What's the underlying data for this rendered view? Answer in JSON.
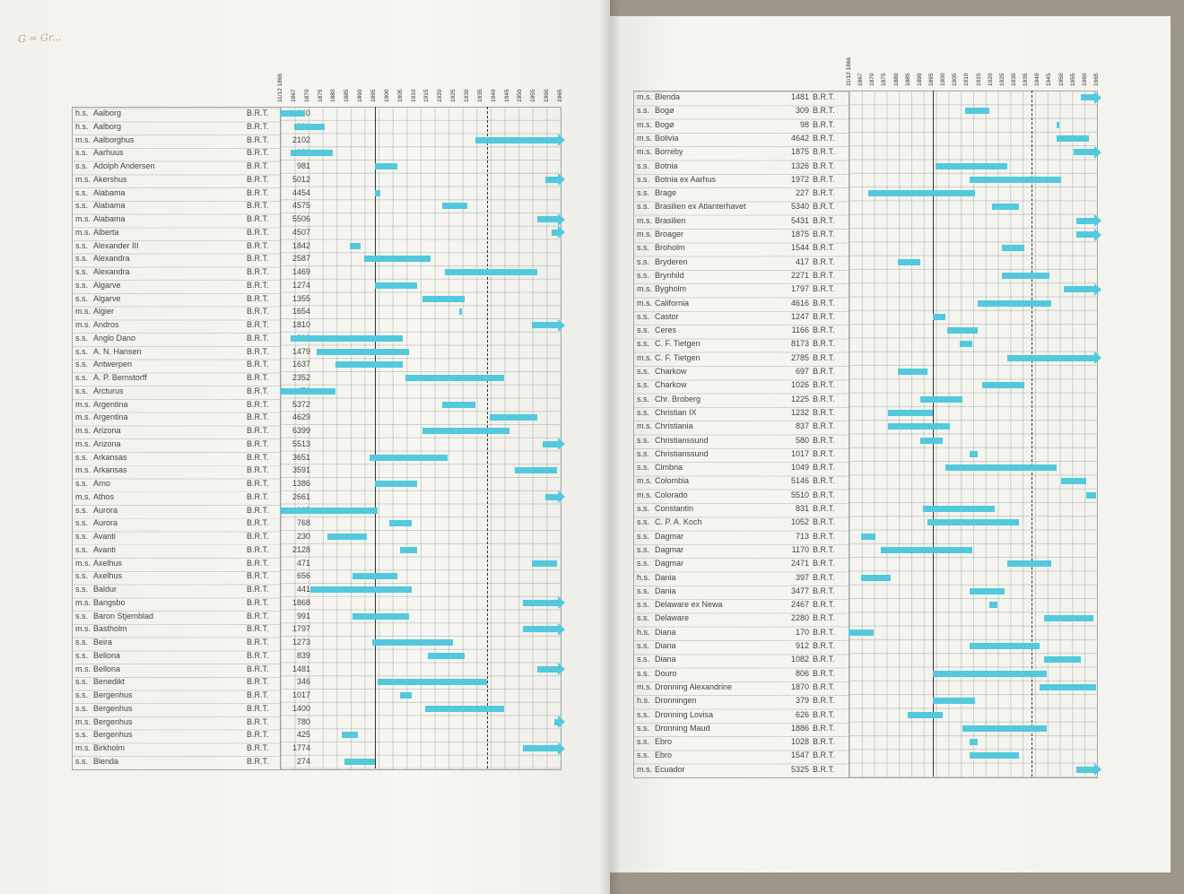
{
  "header_note": "G = Gr...",
  "years": [
    "11/12 1866",
    "1867",
    "1870",
    "1875",
    "1880",
    "1885",
    "1890",
    "1895",
    "1900",
    "1905",
    "1910",
    "1915",
    "1920",
    "1925",
    "1930",
    "1935",
    "1940",
    "1945",
    "1950",
    "1955",
    "1960",
    "1965"
  ],
  "left_rows": [
    {
      "type": "h.s.",
      "name": "Aalborg",
      "tonnage": "140",
      "unit": "B.R.T.",
      "bars": [
        [
          1866,
          1875
        ]
      ]
    },
    {
      "type": "h.s.",
      "name": "Aalborg",
      "tonnage": "161",
      "unit": "B.R.T.",
      "bars": [
        [
          1871,
          1882
        ]
      ]
    },
    {
      "type": "m.s.",
      "name": "Aalborghus",
      "tonnage": "2102",
      "unit": "B.R.T.",
      "bars": [
        [
          1936,
          1966,
          "arrow"
        ]
      ]
    },
    {
      "type": "s.s.",
      "name": "Aarhuus",
      "tonnage": "380",
      "unit": "B.R.T.",
      "bars": [
        [
          1870,
          1885
        ]
      ]
    },
    {
      "type": "s.s.",
      "name": "Adolph Andersen",
      "tonnage": "981",
      "unit": "B.R.T.",
      "bars": [
        [
          1900,
          1908
        ]
      ]
    },
    {
      "type": "m.s.",
      "name": "Akershus",
      "tonnage": "5012",
      "unit": "B.R.T.",
      "bars": [
        [
          1961,
          1966,
          "arrow"
        ]
      ]
    },
    {
      "type": "s.s.",
      "name": "Alabama",
      "tonnage": "4454",
      "unit": "B.R.T.",
      "bars": [
        [
          1900,
          1902
        ]
      ]
    },
    {
      "type": "s.s.",
      "name": "Alabama",
      "tonnage": "4575",
      "unit": "B.R.T.",
      "bars": [
        [
          1924,
          1933
        ]
      ]
    },
    {
      "type": "m.s.",
      "name": "Alabama",
      "tonnage": "5506",
      "unit": "B.R.T.",
      "bars": [
        [
          1958,
          1966,
          "arrow"
        ]
      ]
    },
    {
      "type": "m.s.",
      "name": "Alberta",
      "tonnage": "4507",
      "unit": "B.R.T.",
      "bars": [
        [
          1963,
          1966,
          "arrow"
        ]
      ]
    },
    {
      "type": "s.s.",
      "name": "Alexander III",
      "tonnage": "1842",
      "unit": "B.R.T.",
      "bars": [
        [
          1891,
          1895
        ]
      ]
    },
    {
      "type": "s.s.",
      "name": "Alexandra",
      "tonnage": "2587",
      "unit": "B.R.T.",
      "bars": [
        [
          1896,
          1920
        ]
      ]
    },
    {
      "type": "s.s.",
      "name": "Alexandra",
      "tonnage": "1469",
      "unit": "B.R.T.",
      "bars": [
        [
          1925,
          1958
        ]
      ]
    },
    {
      "type": "s.s.",
      "name": "Algarve",
      "tonnage": "1274",
      "unit": "B.R.T.",
      "bars": [
        [
          1900,
          1915
        ]
      ]
    },
    {
      "type": "s.s.",
      "name": "Algarve",
      "tonnage": "1355",
      "unit": "B.R.T.",
      "bars": [
        [
          1917,
          1932
        ]
      ]
    },
    {
      "type": "m.s.",
      "name": "Algier",
      "tonnage": "1654",
      "unit": "B.R.T.",
      "bars": [
        [
          1930,
          1931
        ]
      ]
    },
    {
      "type": "m.s.",
      "name": "Andros",
      "tonnage": "1810",
      "unit": "B.R.T.",
      "bars": [
        [
          1956,
          1966,
          "arrow"
        ]
      ]
    },
    {
      "type": "s.s.",
      "name": "Anglo Dano",
      "tonnage": "808",
      "unit": "B.R.T.",
      "bars": [
        [
          1870,
          1910
        ]
      ]
    },
    {
      "type": "s.s.",
      "name": "A. N. Hansen",
      "tonnage": "1479",
      "unit": "B.R.T.",
      "bars": [
        [
          1879,
          1912
        ]
      ]
    },
    {
      "type": "s.s.",
      "name": "Antwerpen",
      "tonnage": "1637",
      "unit": "B.R.T.",
      "bars": [
        [
          1886,
          1910
        ]
      ]
    },
    {
      "type": "s.s.",
      "name": "A. P. Bernstorff",
      "tonnage": "2352",
      "unit": "B.R.T.",
      "bars": [
        [
          1911,
          1946
        ]
      ]
    },
    {
      "type": "s.s.",
      "name": "Arcturus",
      "tonnage": "472",
      "unit": "B.R.T.",
      "bars": [
        [
          1866,
          1886
        ]
      ]
    },
    {
      "type": "m.s.",
      "name": "Argentina",
      "tonnage": "5372",
      "unit": "B.R.T.",
      "bars": [
        [
          1924,
          1936
        ]
      ]
    },
    {
      "type": "m.s.",
      "name": "Argentina",
      "tonnage": "4629",
      "unit": "B.R.T.",
      "bars": [
        [
          1941,
          1958
        ]
      ]
    },
    {
      "type": "m.s.",
      "name": "Arizona",
      "tonnage": "6399",
      "unit": "B.R.T.",
      "bars": [
        [
          1917,
          1948
        ]
      ]
    },
    {
      "type": "m.s.",
      "name": "Arizona",
      "tonnage": "5513",
      "unit": "B.R.T.",
      "bars": [
        [
          1960,
          1966,
          "arrow"
        ]
      ]
    },
    {
      "type": "s.s.",
      "name": "Arkansas",
      "tonnage": "3651",
      "unit": "B.R.T.",
      "bars": [
        [
          1898,
          1926
        ]
      ]
    },
    {
      "type": "m.s.",
      "name": "Arkansas",
      "tonnage": "3591",
      "unit": "B.R.T.",
      "bars": [
        [
          1950,
          1965
        ]
      ]
    },
    {
      "type": "s.s.",
      "name": "Arno",
      "tonnage": "1386",
      "unit": "B.R.T.",
      "bars": [
        [
          1900,
          1915
        ]
      ]
    },
    {
      "type": "m.s.",
      "name": "Athos",
      "tonnage": "2661",
      "unit": "B.R.T.",
      "bars": [
        [
          1961,
          1966,
          "arrow"
        ]
      ]
    },
    {
      "type": "s.s.",
      "name": "Aurora",
      "tonnage": "198",
      "unit": "B.R.T.",
      "bars": [
        [
          1866,
          1901
        ]
      ]
    },
    {
      "type": "s.s.",
      "name": "Aurora",
      "tonnage": "768",
      "unit": "B.R.T.",
      "bars": [
        [
          1905,
          1913
        ]
      ]
    },
    {
      "type": "s.s.",
      "name": "Avanti",
      "tonnage": "230",
      "unit": "B.R.T.",
      "bars": [
        [
          1883,
          1897
        ]
      ]
    },
    {
      "type": "s.s.",
      "name": "Avanti",
      "tonnage": "2128",
      "unit": "B.R.T.",
      "bars": [
        [
          1909,
          1915
        ]
      ]
    },
    {
      "type": "m.s.",
      "name": "Axelhus",
      "tonnage": "471",
      "unit": "B.R.T.",
      "bars": [
        [
          1956,
          1965
        ]
      ]
    },
    {
      "type": "s.s.",
      "name": "Axelhus",
      "tonnage": "656",
      "unit": "B.R.T.",
      "bars": [
        [
          1892,
          1908
        ]
      ]
    },
    {
      "type": "s.s.",
      "name": "Baldur",
      "tonnage": "441",
      "unit": "B.R.T.",
      "bars": [
        [
          1877,
          1913
        ]
      ]
    },
    {
      "type": "m.s.",
      "name": "Bangsbo",
      "tonnage": "1868",
      "unit": "B.R.T.",
      "bars": [
        [
          1953,
          1966,
          "arrow"
        ]
      ]
    },
    {
      "type": "s.s.",
      "name": "Baron Stjernblad",
      "tonnage": "991",
      "unit": "B.R.T.",
      "bars": [
        [
          1892,
          1912
        ]
      ]
    },
    {
      "type": "m.s.",
      "name": "Bastholm",
      "tonnage": "1797",
      "unit": "B.R.T.",
      "bars": [
        [
          1953,
          1966,
          "arrow"
        ]
      ]
    },
    {
      "type": "s.s.",
      "name": "Beira",
      "tonnage": "1273",
      "unit": "B.R.T.",
      "bars": [
        [
          1899,
          1928
        ]
      ]
    },
    {
      "type": "s.s.",
      "name": "Bellona",
      "tonnage": "839",
      "unit": "B.R.T.",
      "bars": [
        [
          1919,
          1932
        ]
      ]
    },
    {
      "type": "m.s.",
      "name": "Bellona",
      "tonnage": "1481",
      "unit": "B.R.T.",
      "bars": [
        [
          1958,
          1966,
          "arrow"
        ]
      ]
    },
    {
      "type": "s.s.",
      "name": "Benedikt",
      "tonnage": "346",
      "unit": "B.R.T.",
      "bars": [
        [
          1901,
          1940
        ]
      ]
    },
    {
      "type": "s.s.",
      "name": "Bergenhus",
      "tonnage": "1017",
      "unit": "B.R.T.",
      "bars": [
        [
          1909,
          1913
        ]
      ]
    },
    {
      "type": "s.s.",
      "name": "Bergenhus",
      "tonnage": "1400",
      "unit": "B.R.T.",
      "bars": [
        [
          1918,
          1946
        ]
      ]
    },
    {
      "type": "m.s.",
      "name": "Bergenhus",
      "tonnage": "780",
      "unit": "B.R.T.",
      "bars": [
        [
          1964,
          1966,
          "arrow"
        ]
      ]
    },
    {
      "type": "s.s.",
      "name": "Bergenhus",
      "tonnage": "425",
      "unit": "B.R.T.",
      "bars": [
        [
          1888,
          1894
        ]
      ]
    },
    {
      "type": "m.s.",
      "name": "Birkholm",
      "tonnage": "1774",
      "unit": "B.R.T.",
      "bars": [
        [
          1953,
          1966,
          "arrow"
        ]
      ]
    },
    {
      "type": "s.s.",
      "name": "Blenda",
      "tonnage": "274",
      "unit": "B.R.T.",
      "bars": [
        [
          1889,
          1900
        ]
      ]
    }
  ],
  "right_rows": [
    {
      "type": "m.s.",
      "name": "Blenda",
      "tonnage": "1481",
      "unit": "B.R.T.",
      "bars": [
        [
          1960,
          1966,
          "arrow"
        ]
      ]
    },
    {
      "type": "s.s.",
      "name": "Bogø",
      "tonnage": "309",
      "unit": "B.R.T.",
      "bars": [
        [
          1913,
          1923
        ]
      ]
    },
    {
      "type": "m.s.",
      "name": "Bogø",
      "tonnage": "98",
      "unit": "B.R.T.",
      "bars": [
        [
          1950,
          1951
        ]
      ]
    },
    {
      "type": "m.s.",
      "name": "Bolivia",
      "tonnage": "4642",
      "unit": "B.R.T.",
      "bars": [
        [
          1950,
          1963
        ]
      ]
    },
    {
      "type": "m.s.",
      "name": "Borreby",
      "tonnage": "1875",
      "unit": "B.R.T.",
      "bars": [
        [
          1957,
          1966,
          "arrow"
        ]
      ]
    },
    {
      "type": "s.s.",
      "name": "Botnia",
      "tonnage": "1326",
      "unit": "B.R.T.",
      "bars": [
        [
          1901,
          1930
        ]
      ]
    },
    {
      "type": "s.s.",
      "name": "Botnia ex Aarhus",
      "tonnage": "1972",
      "unit": "B.R.T.",
      "bars": [
        [
          1915,
          1952
        ]
      ]
    },
    {
      "type": "s.s.",
      "name": "Brage",
      "tonnage": "227",
      "unit": "B.R.T.",
      "bars": [
        [
          1874,
          1917
        ]
      ]
    },
    {
      "type": "s.s.",
      "name": "Brasilien ex Atlanterhavet",
      "tonnage": "5340",
      "unit": "B.R.T.",
      "bars": [
        [
          1924,
          1935
        ]
      ]
    },
    {
      "type": "m.s.",
      "name": "Brasilien",
      "tonnage": "5431",
      "unit": "B.R.T.",
      "bars": [
        [
          1958,
          1966,
          "arrow"
        ]
      ]
    },
    {
      "type": "m.s.",
      "name": "Broager",
      "tonnage": "1875",
      "unit": "B.R.T.",
      "bars": [
        [
          1958,
          1966,
          "arrow"
        ]
      ]
    },
    {
      "type": "s.s.",
      "name": "Broholm",
      "tonnage": "1544",
      "unit": "B.R.T.",
      "bars": [
        [
          1928,
          1937
        ]
      ]
    },
    {
      "type": "s.s.",
      "name": "Bryderen",
      "tonnage": "417",
      "unit": "B.R.T.",
      "bars": [
        [
          1886,
          1895
        ]
      ]
    },
    {
      "type": "s.s.",
      "name": "Brynhild",
      "tonnage": "2271",
      "unit": "B.R.T.",
      "bars": [
        [
          1928,
          1947
        ]
      ]
    },
    {
      "type": "m.s.",
      "name": "Bygholm",
      "tonnage": "1797",
      "unit": "B.R.T.",
      "bars": [
        [
          1953,
          1966,
          "arrow"
        ]
      ]
    },
    {
      "type": "m.s.",
      "name": "California",
      "tonnage": "4616",
      "unit": "B.R.T.",
      "bars": [
        [
          1918,
          1948
        ]
      ]
    },
    {
      "type": "s.s.",
      "name": "Castor",
      "tonnage": "1247",
      "unit": "B.R.T.",
      "bars": [
        [
          1900,
          1905
        ]
      ]
    },
    {
      "type": "s.s.",
      "name": "Ceres",
      "tonnage": "1166",
      "unit": "B.R.T.",
      "bars": [
        [
          1906,
          1918
        ]
      ]
    },
    {
      "type": "s.s.",
      "name": "C. F. Tietgen",
      "tonnage": "8173",
      "unit": "B.R.T.",
      "bars": [
        [
          1911,
          1916
        ]
      ]
    },
    {
      "type": "m.s.",
      "name": "C. F. Tietgen",
      "tonnage": "2785",
      "unit": "B.R.T.",
      "bars": [
        [
          1930,
          1966,
          "arrow"
        ]
      ]
    },
    {
      "type": "s.s.",
      "name": "Charkow",
      "tonnage": "697",
      "unit": "B.R.T.",
      "bars": [
        [
          1886,
          1898
        ]
      ]
    },
    {
      "type": "s.s.",
      "name": "Charkow",
      "tonnage": "1026",
      "unit": "B.R.T.",
      "bars": [
        [
          1920,
          1937
        ]
      ]
    },
    {
      "type": "s.s.",
      "name": "Chr. Broberg",
      "tonnage": "1225",
      "unit": "B.R.T.",
      "bars": [
        [
          1895,
          1912
        ]
      ]
    },
    {
      "type": "s.s.",
      "name": "Christian IX",
      "tonnage": "1232",
      "unit": "B.R.T.",
      "bars": [
        [
          1882,
          1900
        ]
      ]
    },
    {
      "type": "m.s.",
      "name": "Christiania",
      "tonnage": "837",
      "unit": "B.R.T.",
      "bars": [
        [
          1882,
          1907
        ]
      ]
    },
    {
      "type": "s.s.",
      "name": "Christianssund",
      "tonnage": "580",
      "unit": "B.R.T.",
      "bars": [
        [
          1895,
          1904
        ]
      ]
    },
    {
      "type": "s.s.",
      "name": "Christianssund",
      "tonnage": "1017",
      "unit": "B.R.T.",
      "bars": [
        [
          1915,
          1918
        ]
      ]
    },
    {
      "type": "s.s.",
      "name": "Cimbria",
      "tonnage": "1049",
      "unit": "B.R.T.",
      "bars": [
        [
          1905,
          1950
        ]
      ]
    },
    {
      "type": "m.s.",
      "name": "Colombia",
      "tonnage": "5146",
      "unit": "B.R.T.",
      "bars": [
        [
          1952,
          1962
        ]
      ]
    },
    {
      "type": "m.s.",
      "name": "Colorado",
      "tonnage": "5510",
      "unit": "B.R.T.",
      "bars": [
        [
          1962,
          1966
        ]
      ]
    },
    {
      "type": "s.s.",
      "name": "Constantin",
      "tonnage": "831",
      "unit": "B.R.T.",
      "bars": [
        [
          1896,
          1925
        ]
      ]
    },
    {
      "type": "s.s.",
      "name": "C. P. A. Koch",
      "tonnage": "1052",
      "unit": "B.R.T.",
      "bars": [
        [
          1898,
          1935
        ]
      ]
    },
    {
      "type": "s.s.",
      "name": "Dagmar",
      "tonnage": "713",
      "unit": "B.R.T.",
      "bars": [
        [
          1871,
          1877
        ]
      ]
    },
    {
      "type": "s.s.",
      "name": "Dagmar",
      "tonnage": "1170",
      "unit": "B.R.T.",
      "bars": [
        [
          1879,
          1916
        ]
      ]
    },
    {
      "type": "s.s.",
      "name": "Dagmar",
      "tonnage": "2471",
      "unit": "B.R.T.",
      "bars": [
        [
          1930,
          1948
        ]
      ]
    },
    {
      "type": "h.s.",
      "name": "Dania",
      "tonnage": "397",
      "unit": "B.R.T.",
      "bars": [
        [
          1871,
          1883
        ]
      ]
    },
    {
      "type": "s.s.",
      "name": "Dania",
      "tonnage": "3477",
      "unit": "B.R.T.",
      "bars": [
        [
          1915,
          1929
        ]
      ]
    },
    {
      "type": "s.s.",
      "name": "Delaware ex Newa",
      "tonnage": "2467",
      "unit": "B.R.T.",
      "bars": [
        [
          1923,
          1926
        ]
      ]
    },
    {
      "type": "s.s.",
      "name": "Delaware",
      "tonnage": "2280",
      "unit": "B.R.T.",
      "bars": [
        [
          1945,
          1965
        ]
      ]
    },
    {
      "type": "h.s.",
      "name": "Diana",
      "tonnage": "170",
      "unit": "B.R.T.",
      "bars": [
        [
          1866,
          1876
        ]
      ]
    },
    {
      "type": "s.s.",
      "name": "Diana",
      "tonnage": "912",
      "unit": "B.R.T.",
      "bars": [
        [
          1915,
          1943
        ]
      ]
    },
    {
      "type": "s.s.",
      "name": "Diana",
      "tonnage": "1082",
      "unit": "B.R.T.",
      "bars": [
        [
          1945,
          1960
        ]
      ]
    },
    {
      "type": "s.s.",
      "name": "Douro",
      "tonnage": "806",
      "unit": "B.R.T.",
      "bars": [
        [
          1900,
          1946
        ]
      ]
    },
    {
      "type": "m.s.",
      "name": "Dronning Alexandrine",
      "tonnage": "1870",
      "unit": "B.R.T.",
      "bars": [
        [
          1943,
          1966
        ]
      ]
    },
    {
      "type": "h.s.",
      "name": "Dronningen",
      "tonnage": "379",
      "unit": "B.R.T.",
      "bars": [
        [
          1900,
          1917
        ]
      ]
    },
    {
      "type": "s.s.",
      "name": "Dronning Lovisa",
      "tonnage": "626",
      "unit": "B.R.T.",
      "bars": [
        [
          1890,
          1904
        ]
      ]
    },
    {
      "type": "s.s.",
      "name": "Dronning Maud",
      "tonnage": "1886",
      "unit": "B.R.T.",
      "bars": [
        [
          1912,
          1946
        ]
      ]
    },
    {
      "type": "s.s.",
      "name": "Ebro",
      "tonnage": "1028",
      "unit": "B.R.T.",
      "bars": [
        [
          1915,
          1918
        ]
      ]
    },
    {
      "type": "s.s.",
      "name": "Ebro",
      "tonnage": "1547",
      "unit": "B.R.T.",
      "bars": [
        [
          1915,
          1935
        ]
      ]
    },
    {
      "type": "m.s.",
      "name": "Ecuador",
      "tonnage": "5325",
      "unit": "B.R.T.",
      "bars": [
        [
          1958,
          1966,
          "arrow"
        ]
      ]
    }
  ]
}
